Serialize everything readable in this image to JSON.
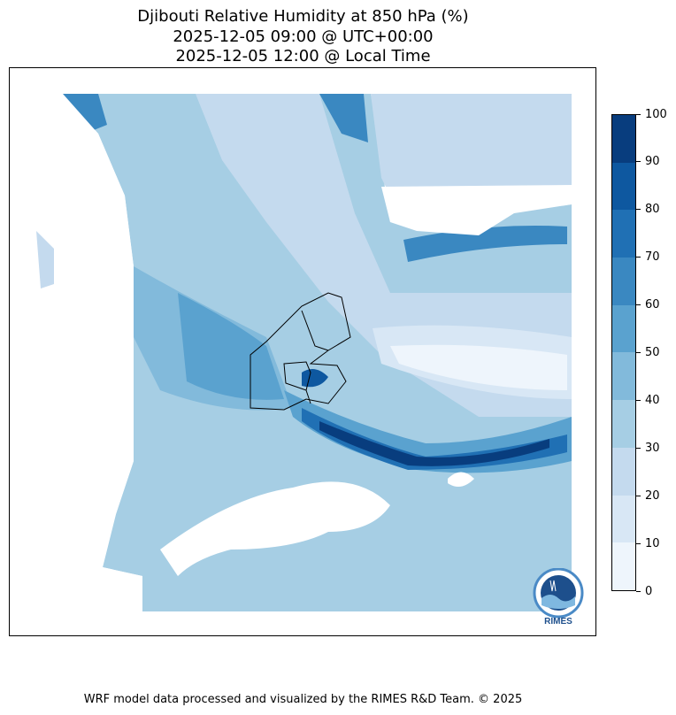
{
  "title_lines": [
    "Djibouti Relative Humidity at 850 hPa (%)",
    "2025-12-05 09:00 @ UTC+00:00",
    "2025-12-05 12:00 @ Local Time"
  ],
  "footer": "WRF model data processed and visualized by the RIMES R&D Team. © 2025",
  "logo_text": "RIMES",
  "chart_data": {
    "type": "contour",
    "variable": "Relative Humidity at 850 hPa (%)",
    "levels": [
      0,
      10,
      20,
      30,
      40,
      50,
      60,
      70,
      80,
      90,
      100
    ],
    "colorbar_ticks": [
      "0",
      "10",
      "20",
      "30",
      "40",
      "50",
      "60",
      "70",
      "80",
      "90",
      "100"
    ],
    "colormap": [
      "#eef5fc",
      "#d8e7f5",
      "#c4daee",
      "#a6cee4",
      "#82badb",
      "#5aa2cf",
      "#3a88c1",
      "#2070b4",
      "#0e58a0",
      "#083d7e"
    ],
    "colorbar_location": "right"
  }
}
